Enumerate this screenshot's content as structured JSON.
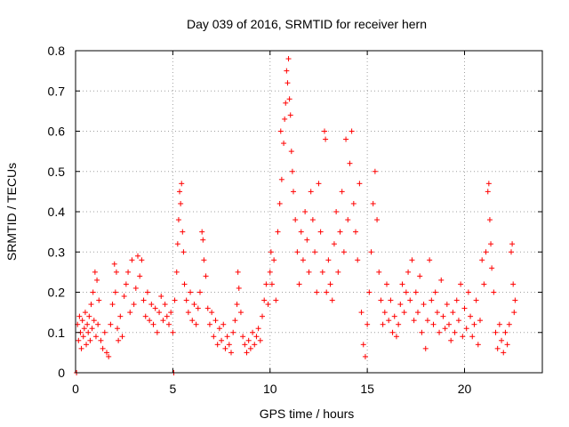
{
  "chart_data": {
    "type": "scatter",
    "title": "Day 039 of 2016, SRMTID for receiver hern",
    "xlabel": "GPS time / hours",
    "ylabel": "SRMTID / TECUs",
    "xlim": [
      0,
      24
    ],
    "ylim": [
      0,
      0.8
    ],
    "xticks": [
      0,
      5,
      10,
      15,
      20
    ],
    "yticks": [
      0,
      0.1,
      0.2,
      0.3,
      0.4,
      0.5,
      0.6,
      0.7,
      0.8
    ],
    "xtick_labels": [
      "0",
      "5",
      "10",
      "15",
      "20"
    ],
    "ytick_labels": [
      "0",
      "0.1",
      "0.2",
      "0.3",
      "0.4",
      "0.5",
      "0.6",
      "0.7",
      "0.8"
    ],
    "grid": true,
    "marker": "+",
    "color": "#ff0000",
    "series": [
      {
        "name": "SRMTID",
        "points": [
          [
            0.05,
            0.0
          ],
          [
            0.1,
            0.12
          ],
          [
            0.15,
            0.08
          ],
          [
            0.2,
            0.14
          ],
          [
            0.25,
            0.1
          ],
          [
            0.3,
            0.06
          ],
          [
            0.35,
            0.13
          ],
          [
            0.4,
            0.09
          ],
          [
            0.45,
            0.11
          ],
          [
            0.5,
            0.15
          ],
          [
            0.55,
            0.07
          ],
          [
            0.6,
            0.12
          ],
          [
            0.65,
            0.1
          ],
          [
            0.7,
            0.14
          ],
          [
            0.75,
            0.08
          ],
          [
            0.8,
            0.17
          ],
          [
            0.85,
            0.11
          ],
          [
            0.9,
            0.2
          ],
          [
            0.95,
            0.13
          ],
          [
            1.0,
            0.25
          ],
          [
            1.05,
            0.09
          ],
          [
            1.1,
            0.23
          ],
          [
            1.15,
            0.12
          ],
          [
            1.2,
            0.18
          ],
          [
            1.3,
            0.08
          ],
          [
            1.4,
            0.06
          ],
          [
            1.5,
            0.1
          ],
          [
            1.6,
            0.05
          ],
          [
            1.7,
            0.04
          ],
          [
            1.8,
            0.12
          ],
          [
            1.9,
            0.17
          ],
          [
            2.0,
            0.27
          ],
          [
            2.05,
            0.2
          ],
          [
            2.1,
            0.25
          ],
          [
            2.15,
            0.11
          ],
          [
            2.2,
            0.08
          ],
          [
            2.3,
            0.14
          ],
          [
            2.4,
            0.09
          ],
          [
            2.5,
            0.19
          ],
          [
            2.6,
            0.22
          ],
          [
            2.7,
            0.25
          ],
          [
            2.8,
            0.15
          ],
          [
            2.9,
            0.28
          ],
          [
            3.0,
            0.17
          ],
          [
            3.1,
            0.21
          ],
          [
            3.2,
            0.29
          ],
          [
            3.3,
            0.24
          ],
          [
            3.4,
            0.28
          ],
          [
            3.5,
            0.18
          ],
          [
            3.6,
            0.14
          ],
          [
            3.7,
            0.2
          ],
          [
            3.8,
            0.13
          ],
          [
            3.9,
            0.17
          ],
          [
            4.0,
            0.12
          ],
          [
            4.1,
            0.16
          ],
          [
            4.2,
            0.1
          ],
          [
            4.3,
            0.15
          ],
          [
            4.4,
            0.19
          ],
          [
            4.5,
            0.13
          ],
          [
            4.6,
            0.17
          ],
          [
            4.7,
            0.14
          ],
          [
            4.8,
            0.12
          ],
          [
            4.9,
            0.15
          ],
          [
            5.0,
            0.1
          ],
          [
            5.05,
            0.0
          ],
          [
            5.1,
            0.18
          ],
          [
            5.2,
            0.25
          ],
          [
            5.25,
            0.32
          ],
          [
            5.3,
            0.38
          ],
          [
            5.35,
            0.45
          ],
          [
            5.4,
            0.42
          ],
          [
            5.45,
            0.47
          ],
          [
            5.5,
            0.35
          ],
          [
            5.55,
            0.3
          ],
          [
            5.6,
            0.22
          ],
          [
            5.7,
            0.18
          ],
          [
            5.8,
            0.15
          ],
          [
            5.9,
            0.2
          ],
          [
            6.0,
            0.13
          ],
          [
            6.1,
            0.17
          ],
          [
            6.2,
            0.12
          ],
          [
            6.3,
            0.16
          ],
          [
            6.4,
            0.2
          ],
          [
            6.5,
            0.35
          ],
          [
            6.55,
            0.33
          ],
          [
            6.6,
            0.28
          ],
          [
            6.7,
            0.24
          ],
          [
            6.8,
            0.16
          ],
          [
            6.9,
            0.12
          ],
          [
            7.0,
            0.15
          ],
          [
            7.1,
            0.09
          ],
          [
            7.2,
            0.13
          ],
          [
            7.3,
            0.07
          ],
          [
            7.4,
            0.11
          ],
          [
            7.5,
            0.08
          ],
          [
            7.6,
            0.12
          ],
          [
            7.7,
            0.06
          ],
          [
            7.8,
            0.09
          ],
          [
            7.9,
            0.07
          ],
          [
            8.0,
            0.05
          ],
          [
            8.1,
            0.1
          ],
          [
            8.2,
            0.13
          ],
          [
            8.3,
            0.17
          ],
          [
            8.35,
            0.25
          ],
          [
            8.4,
            0.21
          ],
          [
            8.5,
            0.15
          ],
          [
            8.6,
            0.09
          ],
          [
            8.7,
            0.07
          ],
          [
            8.8,
            0.05
          ],
          [
            8.9,
            0.08
          ],
          [
            9.0,
            0.06
          ],
          [
            9.1,
            0.1
          ],
          [
            9.2,
            0.07
          ],
          [
            9.3,
            0.09
          ],
          [
            9.4,
            0.11
          ],
          [
            9.5,
            0.08
          ],
          [
            9.6,
            0.14
          ],
          [
            9.7,
            0.18
          ],
          [
            9.8,
            0.22
          ],
          [
            9.9,
            0.17
          ],
          [
            10.0,
            0.25
          ],
          [
            10.05,
            0.3
          ],
          [
            10.1,
            0.22
          ],
          [
            10.2,
            0.28
          ],
          [
            10.3,
            0.18
          ],
          [
            10.4,
            0.35
          ],
          [
            10.5,
            0.42
          ],
          [
            10.55,
            0.6
          ],
          [
            10.6,
            0.48
          ],
          [
            10.7,
            0.57
          ],
          [
            10.75,
            0.63
          ],
          [
            10.8,
            0.67
          ],
          [
            10.85,
            0.75
          ],
          [
            10.9,
            0.72
          ],
          [
            10.95,
            0.78
          ],
          [
            11.0,
            0.68
          ],
          [
            11.05,
            0.64
          ],
          [
            11.1,
            0.55
          ],
          [
            11.15,
            0.5
          ],
          [
            11.2,
            0.45
          ],
          [
            11.3,
            0.38
          ],
          [
            11.4,
            0.3
          ],
          [
            11.5,
            0.22
          ],
          [
            11.6,
            0.35
          ],
          [
            11.7,
            0.28
          ],
          [
            11.8,
            0.4
          ],
          [
            11.9,
            0.33
          ],
          [
            12.0,
            0.25
          ],
          [
            12.1,
            0.45
          ],
          [
            12.2,
            0.38
          ],
          [
            12.3,
            0.3
          ],
          [
            12.4,
            0.2
          ],
          [
            12.5,
            0.47
          ],
          [
            12.6,
            0.35
          ],
          [
            12.7,
            0.25
          ],
          [
            12.8,
            0.6
          ],
          [
            12.85,
            0.58
          ],
          [
            12.9,
            0.2
          ],
          [
            13.0,
            0.28
          ],
          [
            13.1,
            0.22
          ],
          [
            13.2,
            0.18
          ],
          [
            13.3,
            0.32
          ],
          [
            13.4,
            0.4
          ],
          [
            13.5,
            0.25
          ],
          [
            13.6,
            0.35
          ],
          [
            13.7,
            0.45
          ],
          [
            13.8,
            0.3
          ],
          [
            13.9,
            0.58
          ],
          [
            14.0,
            0.38
          ],
          [
            14.1,
            0.52
          ],
          [
            14.2,
            0.6
          ],
          [
            14.3,
            0.42
          ],
          [
            14.4,
            0.35
          ],
          [
            14.5,
            0.28
          ],
          [
            14.6,
            0.47
          ],
          [
            14.7,
            0.15
          ],
          [
            14.8,
            0.07
          ],
          [
            14.9,
            0.04
          ],
          [
            15.0,
            0.12
          ],
          [
            15.1,
            0.2
          ],
          [
            15.2,
            0.3
          ],
          [
            15.3,
            0.42
          ],
          [
            15.4,
            0.5
          ],
          [
            15.5,
            0.38
          ],
          [
            15.6,
            0.25
          ],
          [
            15.7,
            0.18
          ],
          [
            15.8,
            0.12
          ],
          [
            15.9,
            0.15
          ],
          [
            16.0,
            0.22
          ],
          [
            16.1,
            0.13
          ],
          [
            16.2,
            0.18
          ],
          [
            16.3,
            0.1
          ],
          [
            16.4,
            0.14
          ],
          [
            16.5,
            0.09
          ],
          [
            16.6,
            0.12
          ],
          [
            16.7,
            0.17
          ],
          [
            16.8,
            0.22
          ],
          [
            16.9,
            0.15
          ],
          [
            17.0,
            0.2
          ],
          [
            17.1,
            0.25
          ],
          [
            17.2,
            0.18
          ],
          [
            17.3,
            0.28
          ],
          [
            17.4,
            0.13
          ],
          [
            17.5,
            0.2
          ],
          [
            17.6,
            0.15
          ],
          [
            17.7,
            0.24
          ],
          [
            17.8,
            0.1
          ],
          [
            17.9,
            0.17
          ],
          [
            18.0,
            0.06
          ],
          [
            18.1,
            0.13
          ],
          [
            18.2,
            0.28
          ],
          [
            18.3,
            0.18
          ],
          [
            18.4,
            0.12
          ],
          [
            18.5,
            0.2
          ],
          [
            18.6,
            0.15
          ],
          [
            18.7,
            0.1
          ],
          [
            18.8,
            0.23
          ],
          [
            18.9,
            0.14
          ],
          [
            19.0,
            0.11
          ],
          [
            19.1,
            0.17
          ],
          [
            19.2,
            0.12
          ],
          [
            19.3,
            0.08
          ],
          [
            19.4,
            0.15
          ],
          [
            19.5,
            0.1
          ],
          [
            19.6,
            0.18
          ],
          [
            19.7,
            0.13
          ],
          [
            19.8,
            0.22
          ],
          [
            19.9,
            0.09
          ],
          [
            20.0,
            0.16
          ],
          [
            20.1,
            0.11
          ],
          [
            20.2,
            0.2
          ],
          [
            20.3,
            0.14
          ],
          [
            20.4,
            0.09
          ],
          [
            20.5,
            0.12
          ],
          [
            20.6,
            0.18
          ],
          [
            20.7,
            0.07
          ],
          [
            20.8,
            0.13
          ],
          [
            20.9,
            0.28
          ],
          [
            21.0,
            0.22
          ],
          [
            21.1,
            0.3
          ],
          [
            21.2,
            0.45
          ],
          [
            21.25,
            0.47
          ],
          [
            21.3,
            0.38
          ],
          [
            21.35,
            0.32
          ],
          [
            21.4,
            0.26
          ],
          [
            21.5,
            0.2
          ],
          [
            21.6,
            0.1
          ],
          [
            21.7,
            0.06
          ],
          [
            21.8,
            0.12
          ],
          [
            21.9,
            0.08
          ],
          [
            22.0,
            0.05
          ],
          [
            22.1,
            0.1
          ],
          [
            22.2,
            0.07
          ],
          [
            22.3,
            0.12
          ],
          [
            22.4,
            0.3
          ],
          [
            22.45,
            0.32
          ],
          [
            22.5,
            0.22
          ],
          [
            22.55,
            0.15
          ],
          [
            22.6,
            0.18
          ]
        ]
      }
    ]
  }
}
